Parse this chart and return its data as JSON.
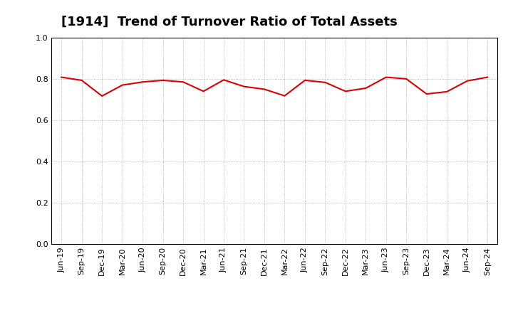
{
  "title": "[1914]  Trend of Turnover Ratio of Total Assets",
  "x_labels": [
    "Jun-19",
    "Sep-19",
    "Dec-19",
    "Mar-20",
    "Jun-20",
    "Sep-20",
    "Dec-20",
    "Mar-21",
    "Jun-21",
    "Sep-21",
    "Dec-21",
    "Mar-22",
    "Jun-22",
    "Sep-22",
    "Dec-22",
    "Mar-23",
    "Jun-23",
    "Sep-23",
    "Dec-23",
    "Mar-24",
    "Jun-24",
    "Sep-24"
  ],
  "values": [
    0.808,
    0.793,
    0.717,
    0.77,
    0.785,
    0.793,
    0.785,
    0.74,
    0.795,
    0.763,
    0.75,
    0.718,
    0.793,
    0.783,
    0.74,
    0.755,
    0.808,
    0.8,
    0.727,
    0.738,
    0.79,
    0.808
  ],
  "line_color": "#dd0000",
  "background_color": "#ffffff",
  "grid_color": "#aaaaaa",
  "ylim": [
    0.0,
    1.0
  ],
  "yticks": [
    0.0,
    0.2,
    0.4,
    0.6,
    0.8,
    1.0
  ],
  "title_fontsize": 13,
  "tick_fontsize": 8
}
